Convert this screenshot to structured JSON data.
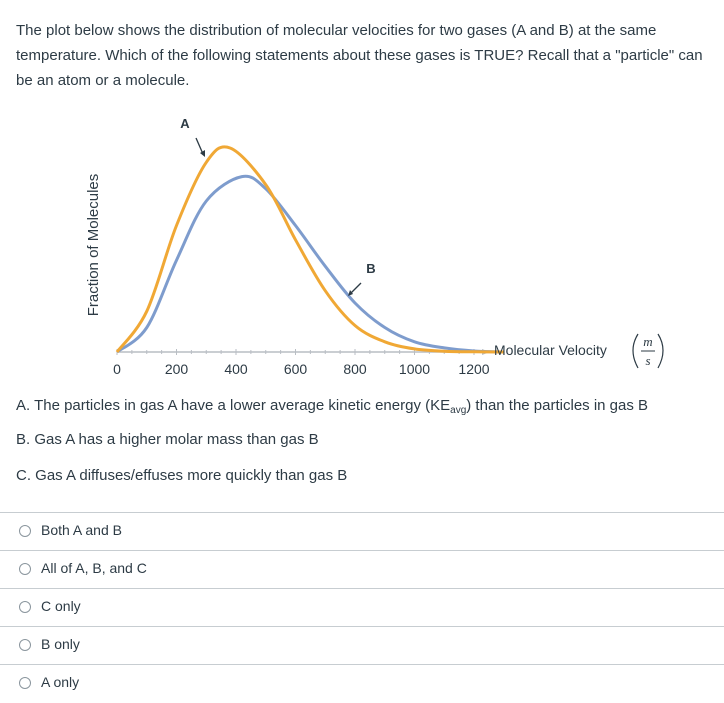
{
  "question": {
    "text": "The plot below shows the distribution of molecular velocities for two gases (A and B) at the same temperature.  Which of the following statements about these gases is TRUE?  Recall that a \"particle\" can be an atom or a molecule."
  },
  "plot": {
    "ylabel": "Fraction of Molecules",
    "xlabel": "Molecular Velocity",
    "unit_numerator": "m",
    "unit_denominator": "s",
    "label_a": "A",
    "label_b": "B",
    "colors": {
      "curve_a": "#f0a835",
      "curve_b": "#7e9ccd",
      "axis": "#b9bec4"
    }
  },
  "chart_data": {
    "type": "line",
    "title": "",
    "xlabel": "Molecular Velocity (m/s)",
    "ylabel": "Fraction of Molecules",
    "x_ticks": [
      "0",
      "200",
      "400",
      "600",
      "800",
      "1000",
      "1200"
    ],
    "xlim": [
      0,
      1300
    ],
    "series": [
      {
        "name": "A",
        "peak_velocity": 380,
        "relative_peak_height": 1.0,
        "x": [
          0,
          100,
          200,
          300,
          380,
          500,
          600,
          700,
          800,
          900,
          1000,
          1100,
          1200,
          1300
        ],
        "y": [
          0,
          0.2,
          0.62,
          0.93,
          1.0,
          0.82,
          0.55,
          0.3,
          0.13,
          0.05,
          0.015,
          0.004,
          0.001,
          0
        ]
      },
      {
        "name": "B",
        "peak_velocity": 420,
        "relative_peak_height": 0.86,
        "x": [
          0,
          100,
          200,
          300,
          420,
          500,
          600,
          700,
          800,
          900,
          1000,
          1100,
          1200,
          1300
        ],
        "y": [
          0,
          0.12,
          0.45,
          0.74,
          0.86,
          0.8,
          0.62,
          0.42,
          0.24,
          0.12,
          0.05,
          0.02,
          0.005,
          0
        ]
      }
    ]
  },
  "statements": {
    "a_prefix": "A. The particles in gas A have a lower average kinetic energy (KE",
    "a_sub": "avg",
    "a_suffix": ") than the particles in gas B",
    "b": "B. Gas A has a higher molar mass than gas B",
    "c": "C. Gas A diffuses/effuses more quickly than gas B"
  },
  "answers": [
    {
      "label": "Both A and B"
    },
    {
      "label": "All of A, B, and C"
    },
    {
      "label": "C only"
    },
    {
      "label": "B only"
    },
    {
      "label": "A only"
    }
  ]
}
